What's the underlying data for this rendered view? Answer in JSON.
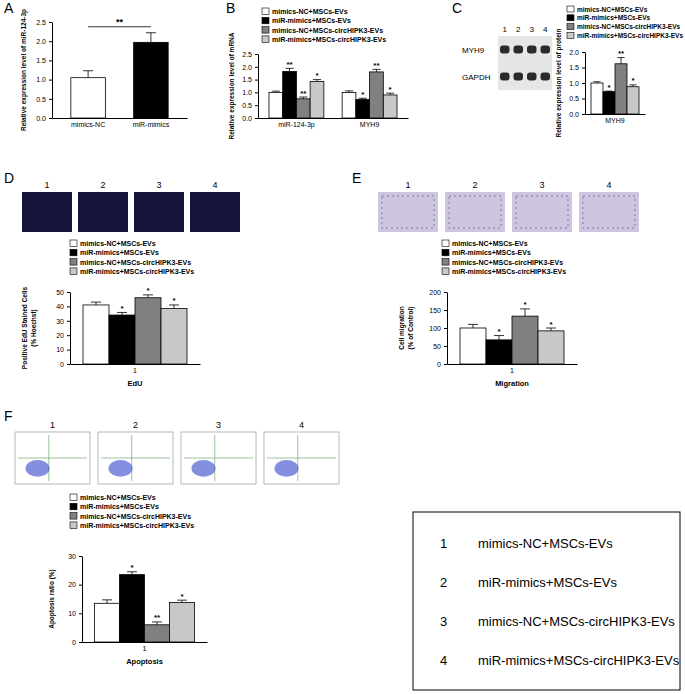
{
  "chart_data": [
    {
      "type": "bar",
      "panel": "A",
      "y_label": [
        "Relative expression level of  miR-124-3p"
      ],
      "categories": [
        "mimics-NC",
        "miR-mimics"
      ],
      "values": [
        1.05,
        1.97
      ],
      "errors": [
        0.18,
        0.25
      ],
      "colors": [
        "#ffffff",
        "#000000"
      ],
      "annotations": [
        "**"
      ],
      "ylim": [
        0,
        2.5
      ],
      "yticks": [
        {
          "value": 0,
          "label": "0.0"
        },
        0.5,
        {
          "value": 1,
          "label": "1.0"
        },
        1.5,
        {
          "value": 2,
          "label": "2.0"
        },
        2.5
      ]
    },
    {
      "type": "bar",
      "panel": "B",
      "y_label": [
        "Relative expression level of mRNA"
      ],
      "categories": [
        "miR-124-3p",
        "MYH9"
      ],
      "series": [
        {
          "name": "mimics-NC+MSCs-EVs",
          "color": "#ffffff",
          "values": [
            1.0,
            1.0
          ],
          "errors": [
            0.05,
            0.06
          ],
          "significance": [
            null,
            null
          ]
        },
        {
          "name": "miR-mimics+MSCs-EVs",
          "color": "#000000",
          "values": [
            1.82,
            0.72
          ],
          "errors": [
            0.12,
            0.05
          ],
          "significance": [
            "**",
            "*"
          ]
        },
        {
          "name": "mimics-NC+MSCs-circHIPK3-EVs",
          "color": "#808080",
          "values": [
            0.75,
            1.8
          ],
          "errors": [
            0.07,
            0.1
          ],
          "significance": [
            "**",
            "**"
          ]
        },
        {
          "name": "miR-mimics+MSCs-circHIPK3-EVs",
          "color": "#c8c8c8",
          "values": [
            1.43,
            0.9
          ],
          "errors": [
            0.07,
            0.07
          ],
          "significance": [
            "*",
            "*"
          ]
        }
      ],
      "legend": "top",
      "ylim": [
        0,
        2.5
      ],
      "yticks": [
        {
          "value": 0,
          "label": "0.0"
        },
        0.5,
        {
          "value": 1,
          "label": "1.0"
        },
        1.5,
        {
          "value": 2,
          "label": "2.0"
        },
        2.5
      ]
    },
    {
      "type": "bar",
      "panel": "C",
      "image_labels": [
        "1",
        "2",
        "3",
        "4"
      ],
      "image_rows": [
        "MYH9",
        "GAPDH"
      ],
      "y_label": [
        "Relative expression level of protein"
      ],
      "categories": [
        "MYH9"
      ],
      "series": [
        {
          "name": "mimics-NC+MSCs-EVs",
          "color": "#ffffff",
          "values": [
            1.0
          ],
          "errors": [
            0.04
          ],
          "significance": [
            null
          ]
        },
        {
          "name": "miR-mimics+MSCs-EVs",
          "color": "#000000",
          "values": [
            0.72
          ],
          "errors": [
            0.02
          ],
          "significance": [
            "*"
          ]
        },
        {
          "name": "mimics-NC+MSCs-circHIPK3-EVs",
          "color": "#808080",
          "values": [
            1.62
          ],
          "errors": [
            0.2
          ],
          "significance": [
            "**"
          ]
        },
        {
          "name": "miR-mimics+MSCs-circHIPK3-EVs",
          "color": "#c8c8c8",
          "values": [
            0.88
          ],
          "errors": [
            0.06
          ],
          "significance": [
            "*"
          ]
        }
      ],
      "legend": "top",
      "ylim": [
        0,
        2
      ],
      "yticks": [
        {
          "value": 0,
          "label": "0.0"
        },
        0.5,
        {
          "value": 1,
          "label": "1.0"
        },
        1.5,
        {
          "value": 2,
          "label": "2.0"
        }
      ]
    },
    {
      "type": "bar",
      "panel": "D",
      "image_labels": [
        "1",
        "2",
        "3",
        "4"
      ],
      "y_label": [
        "Positive EdU Stained Cells",
        "(% Hoechst)"
      ],
      "x_label": "EdU",
      "categories": [
        "1"
      ],
      "series": [
        {
          "name": "mimics-NC+MSCs-EVs",
          "color": "#ffffff",
          "values": [
            41
          ],
          "errors": [
            2
          ],
          "significance": [
            null
          ]
        },
        {
          "name": "miR-mimics+MSCs-EVs",
          "color": "#000000",
          "values": [
            34
          ],
          "errors": [
            1.8
          ],
          "significance": [
            "*"
          ]
        },
        {
          "name": "mimics-NC+MSCs-circHIPK3-EVs",
          "color": "#808080",
          "values": [
            46
          ],
          "errors": [
            2
          ],
          "significance": [
            "*"
          ]
        },
        {
          "name": "miR-mimics+MSCs-circHIPK3-EVs",
          "color": "#c8c8c8",
          "values": [
            38.5
          ],
          "errors": [
            2.5
          ],
          "significance": [
            "*"
          ]
        }
      ],
      "legend": "top",
      "ylim": [
        0,
        50
      ],
      "yticks": [
        0,
        10,
        20,
        30,
        40,
        50
      ]
    },
    {
      "type": "bar",
      "panel": "E",
      "image_labels": [
        "1",
        "2",
        "3",
        "4"
      ],
      "y_label": [
        "Cell migration",
        "(% of Control)"
      ],
      "x_label": "Migration",
      "categories": [
        "1"
      ],
      "series": [
        {
          "name": "mimics-NC+MSCs-EVs",
          "color": "#ffffff",
          "values": [
            100
          ],
          "errors": [
            10
          ],
          "significance": [
            null
          ]
        },
        {
          "name": "miR-mimics+MSCs-EVs",
          "color": "#000000",
          "values": [
            67
          ],
          "errors": [
            12
          ],
          "significance": [
            "*"
          ]
        },
        {
          "name": "mimics-NC+MSCs-circHIPK3-EVs",
          "color": "#808080",
          "values": [
            133
          ],
          "errors": [
            20
          ],
          "significance": [
            "*"
          ]
        },
        {
          "name": "miR-mimics+MSCs-circHIPK3-EVs",
          "color": "#c8c8c8",
          "values": [
            92
          ],
          "errors": [
            8
          ],
          "significance": [
            "*"
          ]
        }
      ],
      "legend": "top",
      "ylim": [
        0,
        200
      ],
      "yticks": [
        0,
        50,
        100,
        150,
        200
      ]
    },
    {
      "type": "bar",
      "panel": "F",
      "image_labels": [
        "1",
        "2",
        "3",
        "4"
      ],
      "y_label": [
        "Apoptosis ratio (%)"
      ],
      "x_label": "Apoptosis",
      "categories": [
        "1"
      ],
      "series": [
        {
          "name": "mimics-NC+MSCs-EVs",
          "color": "#ffffff",
          "values": [
            13.5
          ],
          "errors": [
            1.2
          ],
          "significance": [
            null
          ]
        },
        {
          "name": "miR-mimics+MSCs-EVs",
          "color": "#000000",
          "values": [
            23.5
          ],
          "errors": [
            1
          ],
          "significance": [
            "*"
          ]
        },
        {
          "name": "mimics-NC+MSCs-circHIPK3-EVs",
          "color": "#808080",
          "values": [
            6
          ],
          "errors": [
            1
          ],
          "significance": [
            "**"
          ]
        },
        {
          "name": "miR-mimics+MSCs-circHIPK3-EVs",
          "color": "#c8c8c8",
          "values": [
            13.8
          ],
          "errors": [
            0.8
          ],
          "significance": [
            "*"
          ]
        }
      ],
      "legend": "top",
      "ylim": [
        0,
        30
      ],
      "yticks": [
        0,
        10,
        20,
        30
      ]
    }
  ],
  "key": [
    {
      "number": "1",
      "label": "mimics-NC+MSCs-EVs"
    },
    {
      "number": "2",
      "label": "miR-mimics+MSCs-EVs"
    },
    {
      "number": "3",
      "label": "mimics-NC+MSCs-circHIPK3-EVs"
    },
    {
      "number": "4",
      "label": "miR-mimics+MSCs-circHIPK3-EVs"
    }
  ]
}
